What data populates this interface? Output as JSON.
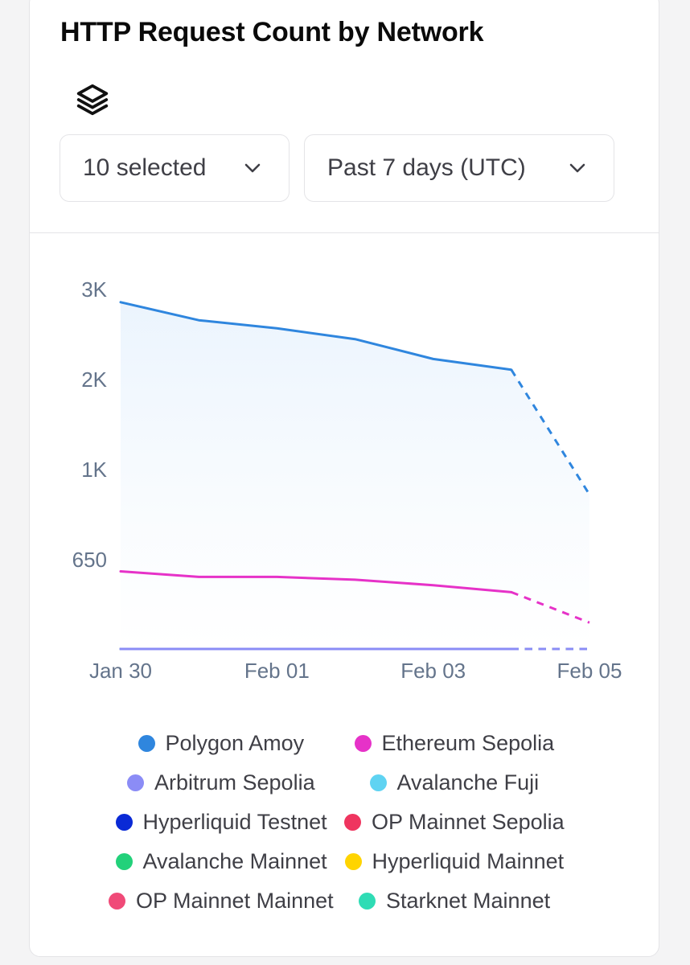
{
  "card": {
    "title": "HTTP Request Count by Network",
    "filters": {
      "networks_selected": "10 selected",
      "time_range": "Past 7 days (UTC)"
    },
    "icons": {
      "layers": "layers-icon",
      "chevron": "chevron-down-icon"
    }
  },
  "chart_data": {
    "type": "line",
    "title": "HTTP Request Count by Network",
    "x": [
      "Jan 30",
      "Jan 31",
      "Feb 01",
      "Feb 02",
      "Feb 03",
      "Feb 04",
      "Feb 05"
    ],
    "x_tick_labels": [
      "Jan 30",
      "Feb 01",
      "Feb 03",
      "Feb 05"
    ],
    "y_tick_labels": [
      "3K",
      "2K",
      "1K",
      "650"
    ],
    "y_scale": "symlog-like (labeled ticks 650, 1K, 2K, 3K)",
    "last_point_dashed": true,
    "series": [
      {
        "name": "Polygon Amoy",
        "color": "#2f86de",
        "values": [
          2850,
          2650,
          2560,
          2440,
          2220,
          2100,
          900
        ]
      },
      {
        "name": "Ethereum Sepolia",
        "color": "#e632c8",
        "values": [
          560,
          520,
          520,
          500,
          460,
          410,
          190
        ]
      },
      {
        "name": "Arbitrum Sepolia",
        "color": "#8b8cf6",
        "values": [
          0,
          0,
          0,
          0,
          0,
          0,
          0
        ]
      },
      {
        "name": "Avalanche Fuji",
        "color": "#5fd3f2",
        "values": [
          0,
          0,
          0,
          0,
          0,
          0,
          0
        ]
      },
      {
        "name": "Hyperliquid Testnet",
        "color": "#0a2ad6",
        "values": [
          0,
          0,
          0,
          0,
          0,
          0,
          0
        ]
      },
      {
        "name": "OP Mainnet Sepolia",
        "color": "#ef355f",
        "values": [
          0,
          0,
          0,
          0,
          0,
          0,
          0
        ]
      },
      {
        "name": "Avalanche Mainnet",
        "color": "#22d17a",
        "values": [
          0,
          0,
          0,
          0,
          0,
          0,
          0
        ]
      },
      {
        "name": "Hyperliquid Mainnet",
        "color": "#ffd400",
        "values": [
          0,
          0,
          0,
          0,
          0,
          0,
          0
        ]
      },
      {
        "name": "OP Mainnet Mainnet",
        "color": "#f04a78",
        "values": [
          0,
          0,
          0,
          0,
          0,
          0,
          0
        ]
      },
      {
        "name": "Starknet Mainnet",
        "color": "#2fdcb5",
        "values": [
          0,
          0,
          0,
          0,
          0,
          0,
          0
        ]
      }
    ]
  }
}
